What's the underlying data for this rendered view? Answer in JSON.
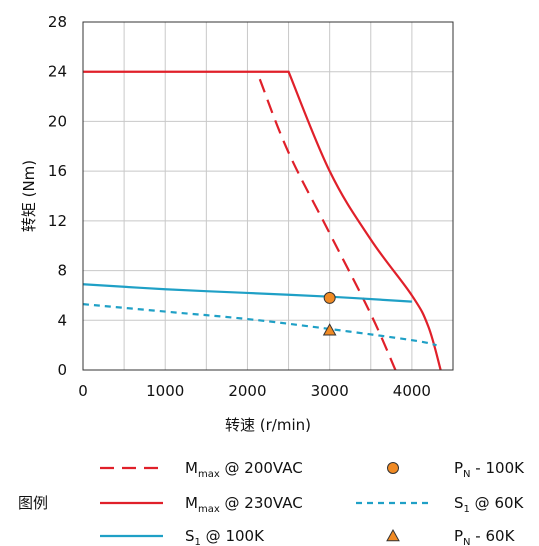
{
  "chart_data": {
    "type": "line",
    "title": "",
    "xlabel": "转速 (r/min)",
    "ylabel": "转矩 (Nm)",
    "xlim": [
      0,
      4500
    ],
    "ylim": [
      0,
      28
    ],
    "xticks": [
      0,
      1000,
      2000,
      3000,
      4000
    ],
    "yticks": [
      0,
      4,
      8,
      12,
      16,
      20,
      24,
      28
    ],
    "grid": true,
    "legend_title": "图例",
    "legend_position": "bottom",
    "series": [
      {
        "name_main": "M",
        "name_sub": "max",
        "name_rest": " @ 200VAC",
        "style": "dashed",
        "color": "#e0202a",
        "x": [
          2150,
          2500,
          3000,
          3500,
          3800
        ],
        "y": [
          23.4,
          17.5,
          11.0,
          4.5,
          0
        ]
      },
      {
        "name_main": "M",
        "name_sub": "max",
        "name_rest": " @ 230VAC",
        "style": "solid",
        "color": "#e0202a",
        "x": [
          0,
          2500,
          3000,
          3500,
          4000,
          4200,
          4350
        ],
        "y": [
          24,
          24,
          16.0,
          10.5,
          6.0,
          3.5,
          0
        ]
      },
      {
        "name_main": "S",
        "name_sub": "1",
        "name_rest": " @ 100K",
        "style": "solid",
        "color": "#1fa0c6",
        "x": [
          0,
          1000,
          2000,
          3000,
          4000
        ],
        "y": [
          6.9,
          6.5,
          6.2,
          5.9,
          5.5
        ]
      },
      {
        "name_main": "S",
        "name_sub": "1",
        "name_rest": " @ 60K",
        "style": "dashed",
        "color": "#1fa0c6",
        "x": [
          0,
          1000,
          2000,
          3000,
          4000,
          4300
        ],
        "y": [
          5.3,
          4.7,
          4.1,
          3.3,
          2.4,
          2.0
        ]
      }
    ],
    "points": [
      {
        "name_main": "P",
        "name_sub": "N",
        "name_rest": " - 100K",
        "marker": "circle",
        "color": "#f08a24",
        "x": 3000,
        "y": 5.8
      },
      {
        "name_main": "P",
        "name_sub": "N",
        "name_rest": " - 60K",
        "marker": "triangle",
        "color": "#f08a24",
        "x": 3000,
        "y": 3.2
      }
    ]
  }
}
